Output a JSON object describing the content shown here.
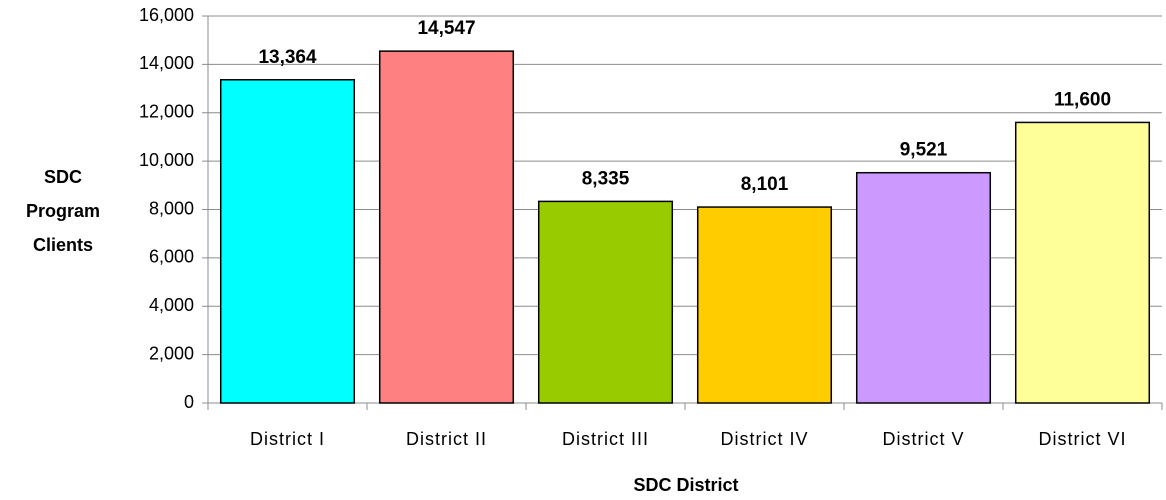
{
  "chart_data": {
    "type": "bar",
    "ylabel": "SDC Program Clients",
    "xlabel": "SDC District",
    "categories": [
      "District I",
      "District II",
      "District III",
      "District IV",
      "District V",
      "District VI"
    ],
    "values": [
      13364,
      14547,
      8335,
      8101,
      9521,
      11600
    ],
    "value_labels": [
      "13,364",
      "14,547",
      "8,335",
      "8,101",
      "9,521",
      "11,600"
    ],
    "colors": [
      "#00ffff",
      "#ff8080",
      "#99cc00",
      "#ffcc00",
      "#cc99ff",
      "#ffff99"
    ],
    "ylim": [
      0,
      16000
    ],
    "yticks": [
      0,
      {
        "value": 2000,
        "label": "2,000"
      },
      {
        "value": 4000,
        "label": "4,000"
      },
      {
        "value": 6000,
        "label": "6,000"
      },
      {
        "value": 8000,
        "label": "8,000"
      },
      {
        "value": 10000,
        "label": "10,000"
      },
      {
        "value": 12000,
        "label": "12,000"
      },
      {
        "value": 14000,
        "label": "14,000"
      },
      {
        "value": 16000,
        "label": "16,000"
      }
    ],
    "grid": true
  }
}
